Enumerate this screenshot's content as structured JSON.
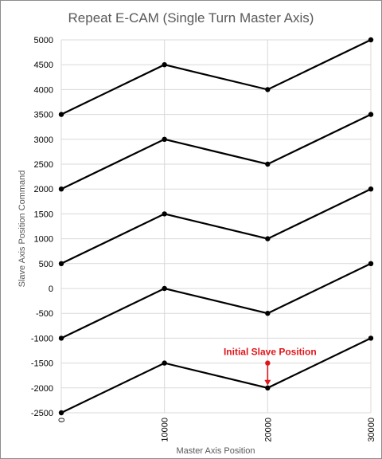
{
  "chart_data": {
    "type": "line",
    "title": "Repeat E-CAM (Single Turn Master Axis)",
    "xlabel": "Master Axis Position",
    "ylabel": "Slave Axis Position Command",
    "x": [
      0,
      10000,
      20000,
      30000
    ],
    "x_tick_labels": [
      "0",
      "10000",
      "20000",
      "30000"
    ],
    "xlim": [
      0,
      30000
    ],
    "ylim": [
      -2500,
      5000
    ],
    "y_ticks": [
      -2500,
      -2000,
      -1500,
      -1000,
      -500,
      0,
      500,
      1000,
      1500,
      2000,
      2500,
      3000,
      3500,
      4000,
      4500,
      5000
    ],
    "grid": true,
    "legend": "none",
    "line_color": "#000000",
    "series": [
      {
        "values": [
          -2500,
          -1500,
          -2000,
          -1000
        ]
      },
      {
        "values": [
          -1000,
          0,
          -500,
          500
        ]
      },
      {
        "values": [
          500,
          1500,
          1000,
          2000
        ]
      },
      {
        "values": [
          2000,
          3000,
          2500,
          3500
        ]
      },
      {
        "values": [
          3500,
          4500,
          4000,
          5000
        ]
      }
    ],
    "annotation": {
      "text": "Initial Slave Position",
      "x": 20000,
      "y_from": -1500,
      "y_to": -2000,
      "color": "#e0161b"
    }
  }
}
